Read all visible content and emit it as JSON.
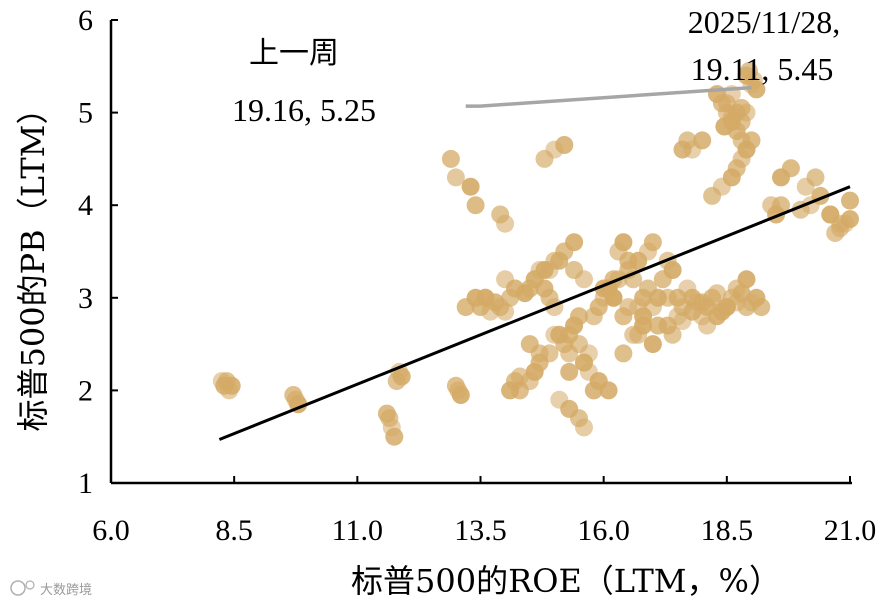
{
  "chart_data": {
    "type": "scatter",
    "xlabel": "标普500的ROE（LTM，%）",
    "ylabel": "标普500的PB（LTM）",
    "xlim": [
      6.0,
      21.0
    ],
    "ylim": [
      1,
      6
    ],
    "x_ticks": [
      "6.0",
      "8.5",
      "11.0",
      "13.5",
      "16.0",
      "18.5",
      "21.0"
    ],
    "y_ticks": [
      "1",
      "2",
      "3",
      "4",
      "5",
      "6"
    ],
    "grid": false,
    "legend": "none",
    "colors": {
      "points": "#D4AA66",
      "fit_line": "#000000",
      "pointer": "#A6A6A6"
    },
    "annotations": {
      "prev_title": "上一周",
      "prev_value": "19.16, 5.25",
      "latest_date": "2025/11/28,",
      "latest_value": "19.11, 5.45"
    },
    "fit_line": {
      "x": [
        8.2,
        21.0
      ],
      "y": [
        1.47,
        4.2
      ]
    },
    "pointer_line": {
      "x": [
        13.2,
        13.5,
        19.0
      ],
      "y": [
        5.07,
        5.07,
        5.27
      ]
    },
    "series": [
      {
        "x": [
          8.25,
          8.3,
          8.35,
          8.4,
          8.45,
          9.7,
          9.75,
          9.8,
          11.6,
          11.65,
          11.7,
          11.75,
          11.8,
          11.85,
          11.9,
          13.0,
          13.05,
          13.1,
          13.5,
          13.6,
          13.7,
          13.8,
          13.9,
          14.0,
          14.1,
          14.2,
          14.3,
          14.4,
          14.5,
          14.6,
          14.7,
          14.8,
          14.9,
          15.0,
          15.1,
          15.2,
          15.3,
          15.4,
          15.5,
          15.6,
          15.7,
          15.8,
          15.9,
          16.0,
          16.1,
          16.2,
          16.3,
          16.4,
          16.5,
          16.6,
          16.7,
          16.8,
          16.9,
          17.0,
          17.1,
          17.2,
          17.3,
          17.4,
          17.5,
          17.6,
          17.7,
          17.8,
          17.9,
          18.0,
          18.1,
          18.2,
          18.3,
          18.4,
          18.5,
          18.6,
          18.7,
          18.8,
          18.9,
          19.0,
          19.1,
          19.2,
          19.4,
          19.6,
          19.8,
          20.0,
          20.2,
          20.4,
          20.6,
          20.8,
          21.0,
          12.9,
          13.0,
          13.3,
          13.4,
          14.8,
          15.0,
          15.2,
          13.9,
          14.0,
          13.6,
          14.3,
          14.5,
          14.6,
          14.7,
          14.9,
          15.1,
          15.3,
          15.5,
          15.6,
          15.4,
          15.2,
          15.0,
          14.8,
          15.3,
          15.5,
          15.7,
          14.2,
          14.1,
          14.0,
          16.2,
          16.4,
          16.6,
          16.8,
          17.0,
          17.3,
          17.5,
          17.6,
          17.7,
          16.9,
          16.7,
          16.5,
          16.3,
          16.1,
          15.9,
          15.8,
          17.8,
          18.0,
          18.2,
          18.4,
          18.6,
          18.7,
          18.8,
          18.9,
          19.0,
          18.5,
          18.6,
          18.7,
          18.8,
          18.9,
          18.3,
          18.4,
          18.5,
          18.6,
          18.7,
          18.8,
          19.0,
          18.9,
          18.95,
          19.05,
          19.1,
          18.8,
          18.6,
          18.45,
          20.6,
          20.7,
          20.9,
          21.0,
          20.3,
          20.1,
          19.5,
          19.6,
          20.8,
          13.4,
          13.2,
          14.6,
          14.9,
          15.1,
          15.4,
          15.6,
          16.0,
          16.2,
          16.5,
          16.8,
          17.1,
          17.4,
          17.6,
          17.8,
          18.0,
          18.1,
          18.3,
          18.5,
          18.7,
          18.9,
          14.5,
          14.7,
          15.0,
          15.3,
          15.6,
          15.9,
          16.1,
          16.4,
          16.7,
          17.0,
          17.3
        ],
        "y": [
          2.1,
          2.05,
          2.1,
          2.0,
          2.05,
          1.95,
          1.9,
          1.85,
          1.75,
          1.7,
          1.6,
          1.5,
          2.1,
          2.2,
          2.15,
          2.05,
          2.0,
          1.95,
          2.9,
          3.0,
          2.85,
          2.95,
          2.9,
          2.85,
          2.0,
          2.1,
          2.15,
          3.05,
          3.1,
          3.2,
          3.3,
          3.1,
          3.0,
          2.9,
          2.6,
          2.5,
          2.4,
          2.7,
          2.8,
          2.3,
          2.2,
          2.0,
          2.1,
          3.0,
          3.1,
          3.2,
          3.5,
          3.6,
          3.4,
          3.2,
          2.9,
          3.0,
          3.1,
          2.9,
          3.0,
          3.2,
          3.4,
          3.3,
          3.0,
          2.9,
          3.1,
          3.0,
          2.95,
          2.8,
          2.9,
          3.0,
          3.05,
          2.85,
          2.9,
          3.0,
          2.95,
          3.05,
          2.9,
          2.95,
          3.0,
          2.9,
          4.0,
          4.3,
          4.4,
          3.95,
          4.0,
          4.1,
          3.9,
          3.8,
          3.85,
          4.5,
          4.3,
          4.2,
          4.0,
          4.5,
          4.6,
          4.65,
          3.9,
          3.8,
          3.0,
          2.0,
          2.1,
          2.2,
          2.3,
          2.4,
          1.9,
          1.8,
          1.7,
          1.6,
          3.6,
          3.5,
          3.4,
          3.3,
          2.6,
          2.5,
          2.4,
          3.1,
          3.0,
          3.2,
          3.0,
          2.8,
          2.6,
          2.7,
          3.6,
          3.0,
          2.8,
          4.6,
          4.7,
          3.5,
          3.4,
          3.3,
          3.2,
          3.1,
          2.9,
          2.8,
          4.6,
          4.7,
          4.1,
          4.2,
          4.3,
          4.4,
          4.5,
          4.6,
          4.7,
          5.1,
          5.2,
          5.0,
          4.9,
          5.0,
          5.2,
          5.1,
          5.0,
          4.9,
          4.8,
          4.7,
          5.3,
          5.4,
          5.45,
          5.35,
          5.25,
          5.05,
          4.95,
          4.85,
          3.9,
          3.7,
          3.8,
          4.05,
          4.3,
          4.2,
          3.9,
          4.0,
          3.75,
          3.0,
          2.9,
          3.2,
          3.3,
          3.4,
          3.3,
          3.2,
          3.1,
          3.0,
          2.9,
          2.8,
          2.7,
          2.6,
          2.75,
          2.85,
          2.95,
          2.7,
          2.8,
          2.9,
          3.1,
          3.2,
          2.5,
          2.4,
          2.6,
          2.2,
          2.3,
          2.1,
          2.0,
          2.4,
          2.6,
          2.5,
          2.7
        ]
      }
    ]
  },
  "watermark": "大数跨境"
}
